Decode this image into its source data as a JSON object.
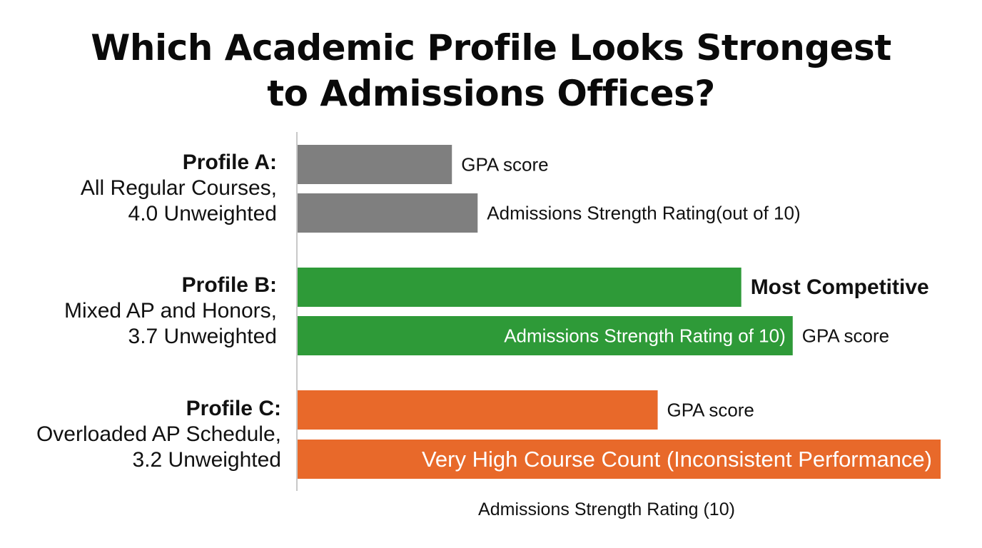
{
  "title_lines": [
    "Which Academic Profile Looks Strongest",
    "to Admissions Offices?"
  ],
  "profiles": [
    {
      "name": "Profile A:",
      "lines": [
        "All Regular Courses,",
        "4.0 Unweighted"
      ]
    },
    {
      "name": "Profile B:",
      "lines": [
        "Mixed AP and Honors,",
        "3.7 Unweighted"
      ]
    },
    {
      "name": "Profile C:",
      "lines": [
        "Overloaded AP Schedule,",
        "3.2 Unweighted"
      ]
    }
  ],
  "colors": {
    "profile_a": "#7f7f7f",
    "profile_b": "#2e9a38",
    "profile_c": "#e8692a",
    "axis": "#c8c8c8"
  },
  "chart_data": {
    "type": "bar",
    "orientation": "horizontal",
    "xlabel": "Admissions Strength Rating (10)",
    "xlim": [
      0,
      10
    ],
    "grid": false,
    "bars": [
      {
        "group": 0,
        "value": 2.4,
        "color": "#7f7f7f",
        "label": "GPA score",
        "label_position": "outside",
        "label_bold": false
      },
      {
        "group": 0,
        "value": 2.8,
        "color": "#7f7f7f",
        "label": "Admissions Strength Rating(out of 10)",
        "label_position": "outside",
        "label_bold": false
      },
      {
        "group": 1,
        "value": 6.9,
        "color": "#2e9a38",
        "label": "Most Competitive",
        "label_position": "outside",
        "label_bold": true
      },
      {
        "group": 1,
        "value": 7.7,
        "color": "#2e9a38",
        "label": "GPA score",
        "label_position": "outside",
        "label_bold": false,
        "inside_label": "Admissions Strength Rating of 10)"
      },
      {
        "group": 2,
        "value": 5.6,
        "color": "#e8692a",
        "label": "GPA score",
        "label_position": "outside",
        "label_bold": false
      },
      {
        "group": 2,
        "value": 10.0,
        "color": "#e8692a",
        "label": "Very High Course Count (Inconsistent Performance)",
        "label_position": "inside",
        "label_bold": false
      }
    ]
  }
}
